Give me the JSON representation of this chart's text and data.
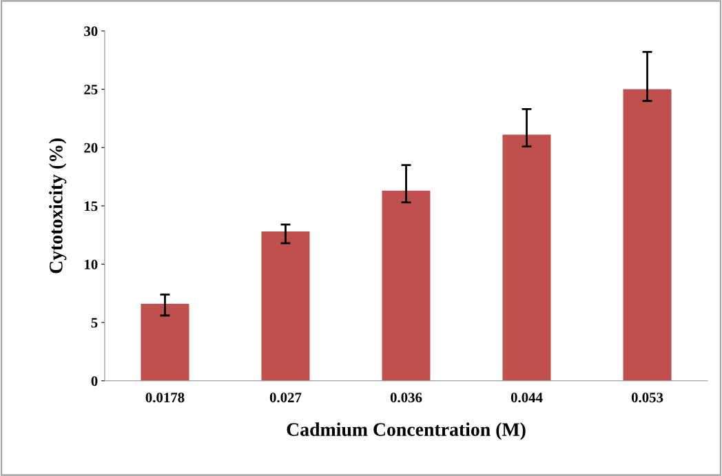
{
  "chart_data": {
    "type": "bar",
    "xlabel": "Cadmium Concentration (M)",
    "ylabel": "Cytotoxicity (%)",
    "categories": [
      "0.0178",
      "0.027",
      "0.036",
      "0.044",
      "0.053"
    ],
    "values": [
      6.6,
      12.8,
      16.3,
      21.1,
      25.0
    ],
    "errors": [
      [
        5.6,
        7.4
      ],
      [
        11.8,
        13.4
      ],
      [
        15.3,
        18.5
      ],
      [
        20.1,
        23.3
      ],
      [
        24.0,
        28.2
      ]
    ],
    "color": "#c0504d",
    "ylim": [
      0,
      30
    ],
    "yticks": [
      0,
      5,
      10,
      15,
      20,
      25,
      30
    ],
    "grid": false,
    "legend": false
  }
}
